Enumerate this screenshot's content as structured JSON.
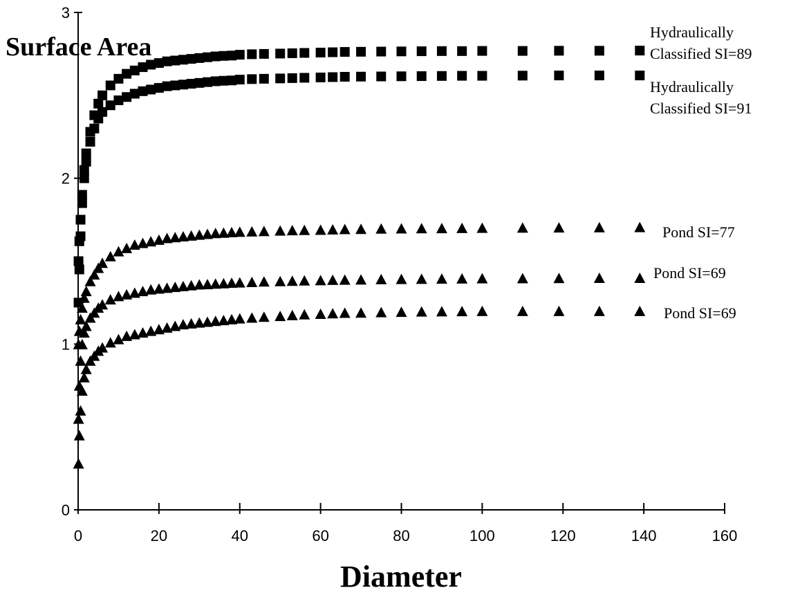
{
  "chart_data": {
    "type": "scatter",
    "xlabel": "Diameter",
    "ylabel": "Surface Area",
    "xlim": [
      0,
      160
    ],
    "ylim": [
      0,
      3
    ],
    "x_ticks": [
      "0",
      "20",
      "40",
      "60",
      "80",
      "100",
      "120",
      "140",
      "160"
    ],
    "y_ticks": [
      "0",
      "1",
      "2",
      "3"
    ],
    "grid": false,
    "legend": "inline labels at right end of each series",
    "series": [
      {
        "name": "Hydraulically Classified SI=89",
        "label_lines": [
          "Hydraulically",
          "Classified SI=89"
        ],
        "marker": "square",
        "x": [
          0.1,
          0.3,
          0.6,
          1,
          1.5,
          2,
          3,
          4,
          5,
          6,
          8,
          10,
          12,
          14,
          16,
          18,
          20,
          22,
          24,
          26,
          28,
          30,
          32,
          34,
          36,
          38,
          40,
          43,
          46,
          50,
          53,
          56,
          60,
          63,
          66,
          70,
          75,
          80,
          85,
          90,
          95,
          100,
          110,
          119,
          129,
          139
        ],
        "y": [
          1.5,
          1.62,
          1.75,
          1.9,
          2.05,
          2.15,
          2.28,
          2.38,
          2.45,
          2.5,
          2.56,
          2.6,
          2.63,
          2.65,
          2.67,
          2.685,
          2.695,
          2.705,
          2.71,
          2.715,
          2.72,
          2.725,
          2.73,
          2.735,
          2.738,
          2.74,
          2.745,
          2.748,
          2.75,
          2.752,
          2.754,
          2.756,
          2.758,
          2.76,
          2.762,
          2.763,
          2.764,
          2.765,
          2.766,
          2.767,
          2.767,
          2.768,
          2.768,
          2.769,
          2.769,
          2.77
        ]
      },
      {
        "name": "Hydraulically Classified SI=91",
        "label_lines": [
          "Hydraulically",
          "Classified SI=91"
        ],
        "marker": "square",
        "x": [
          0.1,
          0.3,
          0.6,
          1,
          1.5,
          2,
          3,
          4,
          5,
          6,
          8,
          10,
          12,
          14,
          16,
          18,
          20,
          22,
          24,
          26,
          28,
          30,
          32,
          34,
          36,
          38,
          40,
          43,
          46,
          50,
          53,
          56,
          60,
          63,
          66,
          70,
          75,
          80,
          85,
          90,
          95,
          100,
          110,
          119,
          129,
          139
        ],
        "y": [
          1.25,
          1.45,
          1.65,
          1.85,
          2.0,
          2.1,
          2.22,
          2.3,
          2.36,
          2.4,
          2.44,
          2.47,
          2.49,
          2.51,
          2.525,
          2.535,
          2.545,
          2.555,
          2.56,
          2.565,
          2.57,
          2.575,
          2.58,
          2.585,
          2.588,
          2.59,
          2.595,
          2.598,
          2.6,
          2.602,
          2.604,
          2.606,
          2.608,
          2.61,
          2.612,
          2.613,
          2.614,
          2.615,
          2.616,
          2.617,
          2.618,
          2.618,
          2.619,
          2.62,
          2.62,
          2.62
        ]
      },
      {
        "name": "Pond SI=77",
        "label_lines": [
          "Pond SI=77"
        ],
        "marker": "triangle",
        "x": [
          0.1,
          0.3,
          0.6,
          1,
          1.5,
          2,
          3,
          4,
          5,
          6,
          8,
          10,
          12,
          14,
          16,
          18,
          20,
          22,
          24,
          26,
          28,
          30,
          32,
          34,
          36,
          38,
          40,
          43,
          46,
          50,
          53,
          56,
          60,
          63,
          66,
          70,
          75,
          80,
          85,
          90,
          95,
          100,
          110,
          119,
          129,
          139
        ],
        "y": [
          1.0,
          1.08,
          1.15,
          1.22,
          1.28,
          1.32,
          1.38,
          1.42,
          1.46,
          1.49,
          1.53,
          1.56,
          1.58,
          1.6,
          1.61,
          1.62,
          1.63,
          1.64,
          1.645,
          1.65,
          1.655,
          1.66,
          1.665,
          1.67,
          1.672,
          1.675,
          1.678,
          1.68,
          1.682,
          1.685,
          1.687,
          1.689,
          1.69,
          1.692,
          1.694,
          1.695,
          1.697,
          1.698,
          1.699,
          1.7,
          1.701,
          1.702,
          1.703,
          1.704,
          1.705,
          1.706
        ]
      },
      {
        "name": "Pond SI=69",
        "label_lines": [
          "Pond SI=69"
        ],
        "marker": "triangle",
        "x": [
          0.1,
          0.3,
          0.6,
          1,
          1.5,
          2,
          3,
          4,
          5,
          6,
          8,
          10,
          12,
          14,
          16,
          18,
          20,
          22,
          24,
          26,
          28,
          30,
          32,
          34,
          36,
          38,
          40,
          43,
          46,
          50,
          53,
          56,
          60,
          63,
          66,
          70,
          75,
          80,
          85,
          90,
          95,
          100,
          110,
          119,
          129,
          139
        ],
        "y": [
          0.55,
          0.75,
          0.9,
          1.0,
          1.07,
          1.11,
          1.16,
          1.19,
          1.22,
          1.24,
          1.27,
          1.29,
          1.3,
          1.31,
          1.32,
          1.33,
          1.335,
          1.34,
          1.345,
          1.35,
          1.355,
          1.36,
          1.362,
          1.365,
          1.367,
          1.37,
          1.372,
          1.375,
          1.378,
          1.38,
          1.382,
          1.384,
          1.386,
          1.388,
          1.389,
          1.39,
          1.392,
          1.393,
          1.394,
          1.395,
          1.396,
          1.397,
          1.398,
          1.399,
          1.4,
          1.4
        ]
      },
      {
        "name": "Pond SI=69",
        "label_lines": [
          "Pond SI=69"
        ],
        "marker": "triangle",
        "x": [
          0.1,
          0.3,
          0.6,
          1,
          1.5,
          2,
          3,
          4,
          5,
          6,
          8,
          10,
          12,
          14,
          16,
          18,
          20,
          22,
          24,
          26,
          28,
          30,
          32,
          34,
          36,
          38,
          40,
          43,
          46,
          50,
          53,
          56,
          60,
          63,
          66,
          70,
          75,
          80,
          85,
          90,
          95,
          100,
          110,
          119,
          129,
          139
        ],
        "y": [
          0.28,
          0.45,
          0.6,
          0.72,
          0.8,
          0.85,
          0.9,
          0.93,
          0.96,
          0.98,
          1.01,
          1.03,
          1.05,
          1.06,
          1.07,
          1.08,
          1.09,
          1.1,
          1.11,
          1.12,
          1.125,
          1.13,
          1.135,
          1.14,
          1.145,
          1.15,
          1.155,
          1.16,
          1.165,
          1.17,
          1.175,
          1.18,
          1.183,
          1.186,
          1.189,
          1.19,
          1.193,
          1.195,
          1.197,
          1.198,
          1.199,
          1.2,
          1.2,
          1.2,
          1.2,
          1.2
        ]
      }
    ]
  }
}
